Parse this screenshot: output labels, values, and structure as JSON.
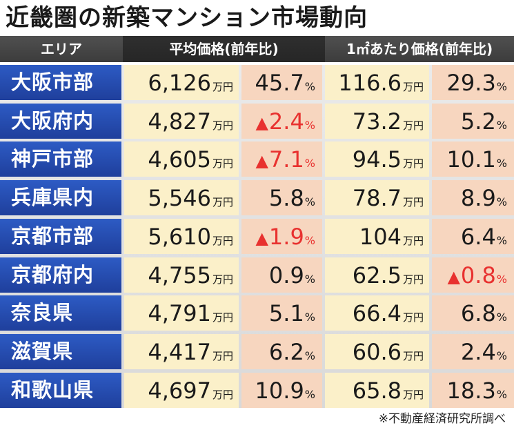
{
  "title": "近畿圏の新築マンション市場動向",
  "header": {
    "area": "エリア",
    "avg_price": "平均価格(前年比)",
    "sqm_price": "1㎡あたり価格(前年比)"
  },
  "units": {
    "man_yen": "万円",
    "percent": "%"
  },
  "colors": {
    "area_blue": "#2d5bc4",
    "price_yellow": "#fbf0c9",
    "change_pink": "#f7d6bf",
    "negative_red": "#e8312f",
    "header_gray": "#505050"
  },
  "decrease_marker": "▲",
  "rows": [
    {
      "area": "大阪市部",
      "avg": "6,126",
      "avg_chg": "45.7",
      "avg_chg_down": false,
      "sqm": "116.6",
      "sqm_chg": "29.3",
      "sqm_chg_down": false
    },
    {
      "area": "大阪府内",
      "avg": "4,827",
      "avg_chg": "2.4",
      "avg_chg_down": true,
      "sqm": "73.2",
      "sqm_chg": "5.2",
      "sqm_chg_down": false
    },
    {
      "area": "神戸市部",
      "avg": "4,605",
      "avg_chg": "7.1",
      "avg_chg_down": true,
      "sqm": "94.5",
      "sqm_chg": "10.1",
      "sqm_chg_down": false
    },
    {
      "area": "兵庫県内",
      "avg": "5,546",
      "avg_chg": "5.8",
      "avg_chg_down": false,
      "sqm": "78.7",
      "sqm_chg": "8.9",
      "sqm_chg_down": false
    },
    {
      "area": "京都市部",
      "avg": "5,610",
      "avg_chg": "1.9",
      "avg_chg_down": true,
      "sqm": "104",
      "sqm_chg": "6.4",
      "sqm_chg_down": false
    },
    {
      "area": "京都府内",
      "avg": "4,755",
      "avg_chg": "0.9",
      "avg_chg_down": false,
      "sqm": "62.5",
      "sqm_chg": "0.8",
      "sqm_chg_down": true
    },
    {
      "area": "奈良県",
      "avg": "4,791",
      "avg_chg": "5.1",
      "avg_chg_down": false,
      "sqm": "66.4",
      "sqm_chg": "6.8",
      "sqm_chg_down": false
    },
    {
      "area": "滋賀県",
      "avg": "4,417",
      "avg_chg": "6.2",
      "avg_chg_down": false,
      "sqm": "60.6",
      "sqm_chg": "2.4",
      "sqm_chg_down": false
    },
    {
      "area": "和歌山県",
      "avg": "4,697",
      "avg_chg": "10.9",
      "avg_chg_down": false,
      "sqm": "65.8",
      "sqm_chg": "18.3",
      "sqm_chg_down": false
    }
  ],
  "source_note": "※不動産経済研究所調べ"
}
